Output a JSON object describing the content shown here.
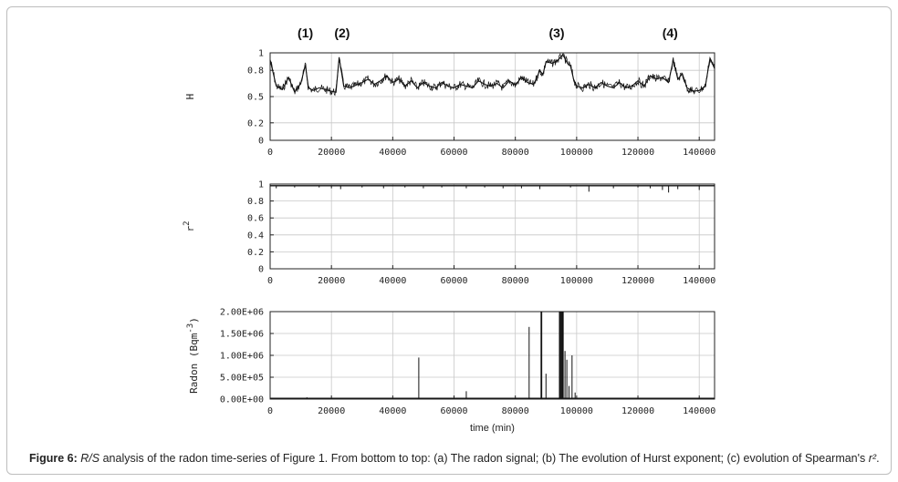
{
  "caption": {
    "figure_label": "Figure 6:",
    "rs": "R/S",
    "text": " analysis of the radon time-series of Figure 1. From bottom to top: (a) The radon signal; (b) The evolution of Hurst exponent; (c) evolution of Spearman's ",
    "r2": "r²",
    "end": "."
  },
  "chart_data": [
    {
      "id": "hurst",
      "type": "line",
      "ylabel": "H",
      "xlim": [
        0,
        145000
      ],
      "ylim": [
        0,
        1
      ],
      "yticks": [
        0,
        0.2,
        0.5,
        0.8,
        1
      ],
      "ytick_labels": [
        "0",
        "0.2",
        "0.5",
        "0.8",
        "1"
      ],
      "xticks": [
        0,
        20000,
        40000,
        60000,
        80000,
        100000,
        120000,
        140000
      ],
      "xtick_labels": [
        "0",
        "20000",
        "40000",
        "60000",
        "80000",
        "100000",
        "120000",
        "140000"
      ],
      "grid": true,
      "event_labels": [
        {
          "label": "(1)",
          "x": 11500
        },
        {
          "label": "(2)",
          "x": 23500
        },
        {
          "label": "(3)",
          "x": 93500
        },
        {
          "label": "(4)",
          "x": 130500
        }
      ],
      "x": [
        0,
        2000,
        4000,
        6000,
        8000,
        10000,
        11500,
        12500,
        14000,
        16000,
        18000,
        20000,
        21500,
        22500,
        24000,
        26000,
        28000,
        30000,
        32000,
        34000,
        36000,
        38000,
        40000,
        42000,
        44000,
        46000,
        48000,
        50000,
        52000,
        54000,
        56000,
        58000,
        60000,
        62000,
        64000,
        66000,
        68000,
        70000,
        72000,
        74000,
        76000,
        78000,
        80000,
        82000,
        84000,
        86000,
        88000,
        89000,
        90000,
        92000,
        94000,
        95500,
        97000,
        98000,
        99000,
        100000,
        102000,
        104000,
        106000,
        108000,
        110000,
        112000,
        114000,
        116000,
        118000,
        120000,
        122000,
        124000,
        126000,
        128000,
        130000,
        131500,
        133000,
        134500,
        136000,
        138000,
        140000,
        142000,
        143500,
        145000
      ],
      "y": [
        0.92,
        0.62,
        0.58,
        0.72,
        0.55,
        0.65,
        0.86,
        0.6,
        0.57,
        0.6,
        0.58,
        0.56,
        0.55,
        0.95,
        0.62,
        0.6,
        0.63,
        0.66,
        0.7,
        0.64,
        0.68,
        0.74,
        0.66,
        0.7,
        0.62,
        0.68,
        0.6,
        0.66,
        0.62,
        0.6,
        0.66,
        0.62,
        0.6,
        0.64,
        0.62,
        0.6,
        0.68,
        0.64,
        0.62,
        0.65,
        0.6,
        0.68,
        0.63,
        0.72,
        0.66,
        0.64,
        0.8,
        0.75,
        0.9,
        0.88,
        0.92,
        0.98,
        0.88,
        0.85,
        0.7,
        0.62,
        0.6,
        0.64,
        0.6,
        0.66,
        0.62,
        0.6,
        0.66,
        0.6,
        0.62,
        0.68,
        0.62,
        0.74,
        0.7,
        0.72,
        0.66,
        0.92,
        0.7,
        0.76,
        0.6,
        0.56,
        0.57,
        0.62,
        0.94,
        0.82
      ]
    },
    {
      "id": "spearman",
      "type": "line",
      "ylabel": "r",
      "ylabel_sup": "2",
      "xlim": [
        0,
        145000
      ],
      "ylim": [
        0,
        1
      ],
      "yticks": [
        0,
        0.2,
        0.4,
        0.6,
        0.8,
        1
      ],
      "ytick_labels": [
        "0",
        "0.2",
        "0.4",
        "0.6",
        "0.8",
        "1"
      ],
      "xticks": [
        0,
        20000,
        40000,
        60000,
        80000,
        100000,
        120000,
        140000
      ],
      "xtick_labels": [
        "0",
        "20000",
        "40000",
        "60000",
        "80000",
        "100000",
        "120000",
        "140000"
      ],
      "grid": true,
      "baseline": 0.98,
      "dips": [
        {
          "x": 2000,
          "y": 0.95
        },
        {
          "x": 8000,
          "y": 0.96
        },
        {
          "x": 16000,
          "y": 0.96
        },
        {
          "x": 20000,
          "y": 0.95
        },
        {
          "x": 23000,
          "y": 0.94
        },
        {
          "x": 30000,
          "y": 0.96
        },
        {
          "x": 37000,
          "y": 0.95
        },
        {
          "x": 44000,
          "y": 0.96
        },
        {
          "x": 50000,
          "y": 0.95
        },
        {
          "x": 56000,
          "y": 0.96
        },
        {
          "x": 64000,
          "y": 0.95
        },
        {
          "x": 70000,
          "y": 0.96
        },
        {
          "x": 76000,
          "y": 0.95
        },
        {
          "x": 82000,
          "y": 0.95
        },
        {
          "x": 88000,
          "y": 0.94
        },
        {
          "x": 98000,
          "y": 0.96
        },
        {
          "x": 104000,
          "y": 0.91
        },
        {
          "x": 112000,
          "y": 0.95
        },
        {
          "x": 120000,
          "y": 0.96
        },
        {
          "x": 124000,
          "y": 0.95
        },
        {
          "x": 128000,
          "y": 0.93
        },
        {
          "x": 130000,
          "y": 0.9
        },
        {
          "x": 133000,
          "y": 0.94
        },
        {
          "x": 140000,
          "y": 0.93
        }
      ]
    },
    {
      "id": "radon",
      "type": "line",
      "ylabel": "Radon (Bqm",
      "ylabel_sup": "-3",
      "ylabel_end": ")",
      "xlabel": "time (min)",
      "xlim": [
        0,
        145000
      ],
      "ylim": [
        0,
        2000000
      ],
      "yticks": [
        0,
        500000,
        1000000,
        1500000,
        2000000
      ],
      "ytick_labels": [
        "0.00E+00",
        "5.00E+05",
        "1.00E+06",
        "1.50E+06",
        "2.00E+06"
      ],
      "xticks": [
        0,
        20000,
        40000,
        60000,
        80000,
        100000,
        120000,
        140000
      ],
      "xtick_labels": [
        "0",
        "20000",
        "40000",
        "60000",
        "80000",
        "100000",
        "120000",
        "140000"
      ],
      "grid": true,
      "baseline": 20000,
      "spikes": [
        {
          "x": 12000,
          "y": 40000
        },
        {
          "x": 20000,
          "y": 30000
        },
        {
          "x": 48500,
          "y": 950000
        },
        {
          "x": 64000,
          "y": 180000
        },
        {
          "x": 84500,
          "y": 1650000
        },
        {
          "x": 88500,
          "y": 2000000
        },
        {
          "x": 90000,
          "y": 580000
        },
        {
          "x": 94500,
          "y": 2000000
        },
        {
          "x": 95000,
          "y": 2000000
        },
        {
          "x": 95500,
          "y": 2000000
        },
        {
          "x": 96200,
          "y": 1100000
        },
        {
          "x": 96800,
          "y": 900000
        },
        {
          "x": 97500,
          "y": 300000
        },
        {
          "x": 98500,
          "y": 1000000
        },
        {
          "x": 99500,
          "y": 150000
        }
      ]
    }
  ]
}
